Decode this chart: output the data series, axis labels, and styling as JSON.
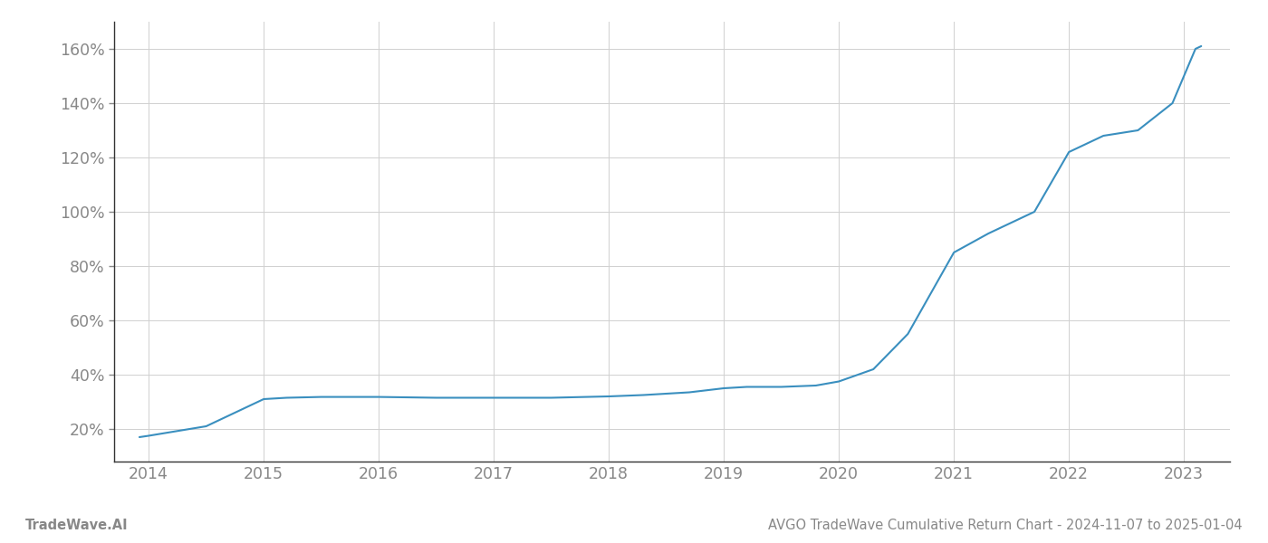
{
  "x_years": [
    2013.92,
    2014.0,
    2014.5,
    2015.0,
    2015.2,
    2015.5,
    2016.0,
    2016.5,
    2017.0,
    2017.5,
    2018.0,
    2018.3,
    2018.7,
    2019.0,
    2019.2,
    2019.5,
    2019.8,
    2020.0,
    2020.3,
    2020.6,
    2021.0,
    2021.3,
    2021.7,
    2022.0,
    2022.3,
    2022.6,
    2022.9,
    2023.1,
    2023.15
  ],
  "y_values": [
    17.0,
    17.5,
    21.0,
    31.0,
    31.5,
    31.8,
    31.8,
    31.5,
    31.5,
    31.5,
    32.0,
    32.5,
    33.5,
    35.0,
    35.5,
    35.5,
    36.0,
    37.5,
    42.0,
    55.0,
    85.0,
    92.0,
    100.0,
    122.0,
    128.0,
    130.0,
    140.0,
    160.0,
    161.0
  ],
  "line_color": "#3a8fbf",
  "line_width": 1.5,
  "bg_color": "#ffffff",
  "grid_color": "#d0d0d0",
  "left_spine_color": "#333333",
  "bottom_spine_color": "#333333",
  "tick_color": "#888888",
  "footer_left": "TradeWave.AI",
  "footer_right": "AVGO TradeWave Cumulative Return Chart - 2024-11-07 to 2025-01-04",
  "yticks": [
    20,
    40,
    60,
    80,
    100,
    120,
    140,
    160
  ],
  "ylim": [
    8,
    170
  ],
  "xlim": [
    2013.7,
    2023.4
  ],
  "xticks": [
    2014,
    2015,
    2016,
    2017,
    2018,
    2019,
    2020,
    2021,
    2022,
    2023
  ],
  "footer_fontsize": 10.5,
  "tick_fontsize": 12.5
}
